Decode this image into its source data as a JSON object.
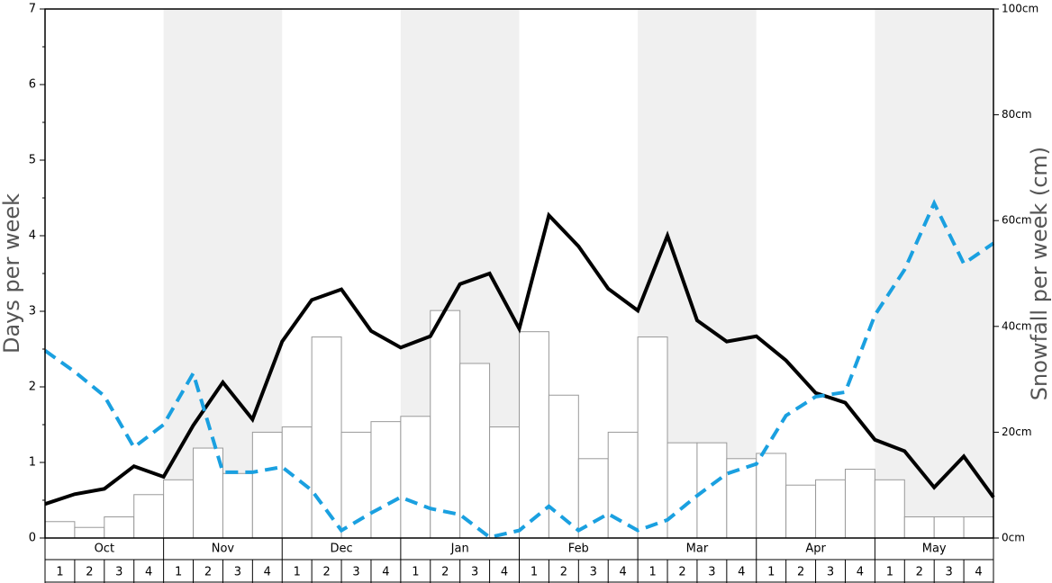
{
  "chart_data": {
    "type": "bar-line",
    "ylabel": "Days per week",
    "y2label": "Snowfall per week (cm)",
    "months": [
      "Oct",
      "Nov",
      "Dec",
      "Jan",
      "Feb",
      "Mar",
      "Apr",
      "May"
    ],
    "weeks": [
      1,
      2,
      3,
      4
    ],
    "ylim": [
      0,
      7
    ],
    "yticks": [
      0,
      1,
      2,
      3,
      4,
      5,
      6,
      7
    ],
    "yminor_ticks": [
      0.5,
      1.5,
      2.5,
      3.5,
      4.5,
      5.5,
      6.5
    ],
    "y2lim": [
      0,
      100
    ],
    "y2ticks": [
      {
        "value": 0,
        "label": "0cm"
      },
      {
        "value": 20,
        "label": "20cm"
      },
      {
        "value": 40,
        "label": "40cm"
      },
      {
        "value": 60,
        "label": "60cm"
      },
      {
        "value": 80,
        "label": "80cm"
      },
      {
        "value": 100,
        "label": "100cm"
      }
    ],
    "series": [
      {
        "type": "bar",
        "axis": "y2",
        "color": "#ffffff",
        "edge_color": "#999999",
        "values": [
          3.1,
          2,
          4,
          8.2,
          11,
          17,
          12.2,
          20,
          21,
          38,
          20,
          22,
          23,
          43,
          33,
          21,
          39,
          27,
          15,
          20,
          38,
          18,
          18,
          15,
          16,
          10,
          11,
          13,
          11,
          4,
          4,
          4
        ]
      },
      {
        "type": "line",
        "axis": "y",
        "color": "#000000",
        "dashed": false,
        "values": [
          0.45,
          0.58,
          0.65,
          0.95,
          0.81,
          1.49,
          2.06,
          1.57,
          2.6,
          3.15,
          3.29,
          2.74,
          2.52,
          2.67,
          3.36,
          3.5,
          2.77,
          4.27,
          3.86,
          3.3,
          3.01,
          4.0,
          2.88,
          2.6,
          2.67,
          2.35,
          1.92,
          1.79,
          1.3,
          1.15,
          0.67,
          1.08,
          0.54
        ]
      },
      {
        "type": "line",
        "axis": "y",
        "color": "#1aa0e0",
        "dashed": true,
        "values": [
          2.48,
          2.2,
          1.88,
          1.2,
          1.5,
          2.18,
          0.87,
          0.87,
          0.94,
          0.63,
          0.1,
          0.33,
          0.54,
          0.39,
          0.31,
          0.01,
          0.1,
          0.42,
          0.1,
          0.32,
          0.1,
          0.24,
          0.56,
          0.85,
          0.98,
          1.62,
          1.87,
          1.93,
          2.95,
          3.55,
          4.43,
          3.63,
          3.9
        ]
      }
    ]
  }
}
